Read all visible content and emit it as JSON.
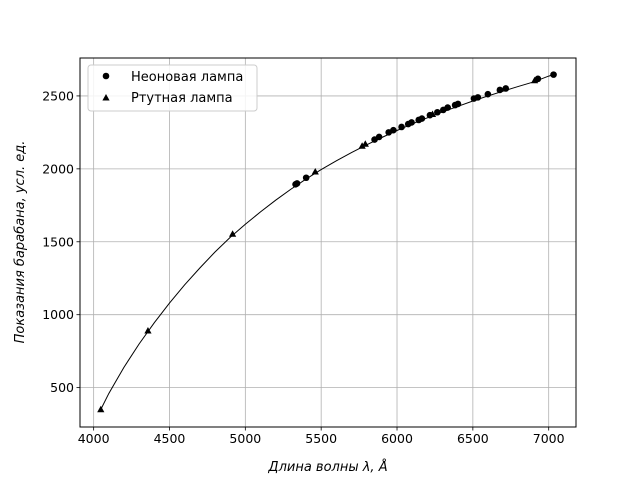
{
  "chart_data": {
    "type": "scatter",
    "xlabel": "Длина волны λ,  Å",
    "ylabel": "Показания барабана,  усл.  ед.",
    "xlim": [
      3910,
      7180
    ],
    "ylim": [
      230,
      2760
    ],
    "xticks": [
      4000,
      4500,
      5000,
      5500,
      6000,
      6500,
      7000
    ],
    "yticks": [
      500,
      1000,
      1500,
      2000,
      2500
    ],
    "grid": true,
    "legend_position": "top-left",
    "series": [
      {
        "name": "Неоновая лампа",
        "marker": "circle",
        "color": "#000000",
        "x": [
          5331,
          5341,
          5401,
          5852,
          5882,
          5945,
          5976,
          6030,
          6074,
          6096,
          6143,
          6164,
          6217,
          6266,
          6305,
          6334,
          6383,
          6402,
          6507,
          6533,
          6599,
          6678,
          6717,
          6929,
          7032
        ],
        "y": [
          1894,
          1900,
          1939,
          2201,
          2219,
          2250,
          2265,
          2287,
          2307,
          2318,
          2335,
          2345,
          2368,
          2388,
          2404,
          2420,
          2437,
          2445,
          2482,
          2490,
          2512,
          2541,
          2551,
          2617,
          2646
        ]
      },
      {
        "name": "Ртутная лампа",
        "marker": "triangle",
        "color": "#000000",
        "x": [
          4047,
          4358,
          4916,
          5461,
          5770,
          5791,
          6234,
          6907
        ],
        "y": [
          350,
          890,
          1553,
          1980,
          2156,
          2170,
          2374,
          2605
        ]
      },
      {
        "name": "",
        "type": "line",
        "color": "#000000",
        "x": [
          4047,
          4100,
          4200,
          4300,
          4400,
          4500,
          4600,
          4700,
          4800,
          4900,
          5000,
          5100,
          5200,
          5300,
          5400,
          5500,
          5600,
          5700,
          5800,
          5900,
          6000,
          6100,
          6200,
          6300,
          6400,
          6500,
          6600,
          6700,
          6800,
          6900,
          7000,
          7032
        ],
        "y": [
          350,
          460,
          640,
          800,
          945,
          1080,
          1205,
          1320,
          1430,
          1530,
          1620,
          1705,
          1785,
          1860,
          1930,
          1995,
          2055,
          2112,
          2165,
          2215,
          2263,
          2308,
          2350,
          2390,
          2428,
          2465,
          2500,
          2533,
          2565,
          2596,
          2636,
          2646
        ]
      }
    ]
  }
}
